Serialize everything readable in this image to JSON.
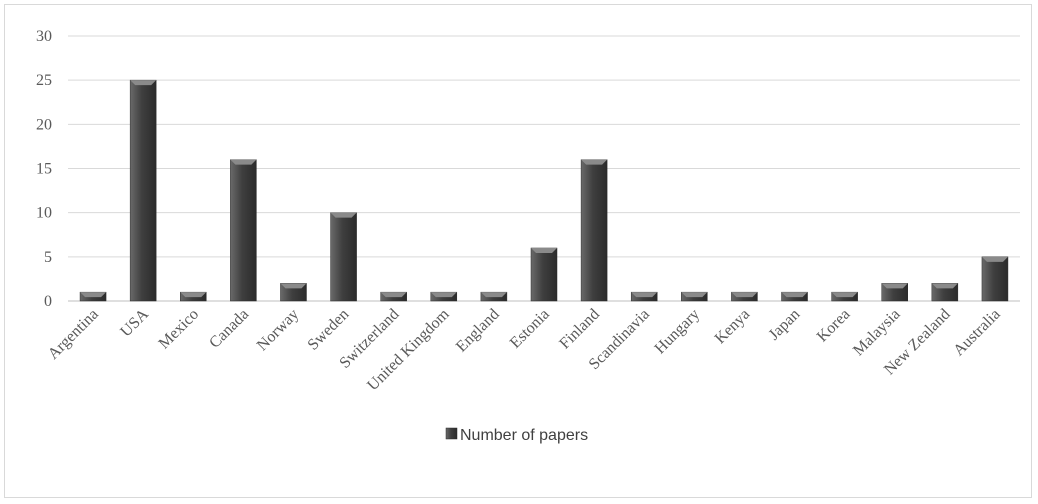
{
  "chart_data": {
    "type": "bar",
    "title": "",
    "xlabel": "",
    "ylabel": "",
    "ylim": [
      0,
      30
    ],
    "yticks": [
      0,
      5,
      10,
      15,
      20,
      25,
      30
    ],
    "grid": true,
    "legend_position": "bottom",
    "categories": [
      "Argentina",
      "USA",
      "Mexico",
      "Canada",
      "Norway",
      "Sweden",
      "Switzerland",
      "United Kingdom",
      "England",
      "Estonia",
      "Finland",
      "Scandinavia",
      "Hungary",
      "Kenya",
      "Japan",
      "Korea",
      "Malaysia",
      "New Zealand",
      "Australia"
    ],
    "series": [
      {
        "name": "Number of papers",
        "color": "#4a4a4a",
        "values": [
          1,
          25,
          1,
          16,
          2,
          10,
          1,
          1,
          1,
          6,
          16,
          1,
          1,
          1,
          1,
          1,
          2,
          2,
          5
        ]
      }
    ]
  }
}
